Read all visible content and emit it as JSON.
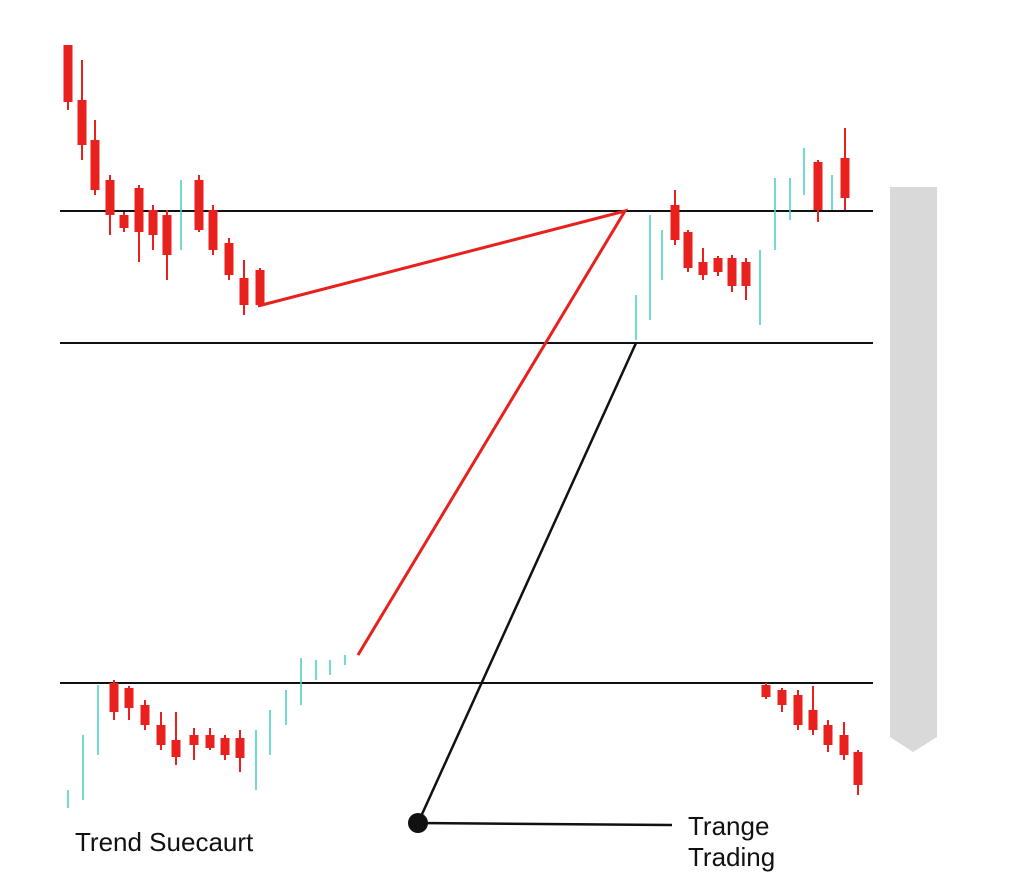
{
  "labels": {
    "left": "Trend Suecaurt",
    "right_line_1": "Trange",
    "right_line_2": "Trading"
  }
}
